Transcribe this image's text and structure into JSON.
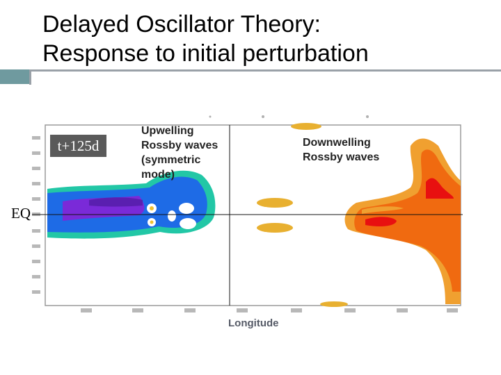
{
  "slide": {
    "title_line1": "Delayed Oscillator Theory:",
    "title_line2": "Response to initial perturbation"
  },
  "figure": {
    "time_label": "t+125d",
    "eq_label": "EQ",
    "x_axis_label": "Longitude",
    "annotations": {
      "upwelling": [
        "Upwelling",
        "Rossby waves",
        "(symmetric",
        "mode)"
      ],
      "downwelling": [
        "Downwelling",
        "Rossby waves"
      ]
    },
    "colors": {
      "upwelling_outer": "#22c7a6",
      "upwelling_mid": "#1e6be6",
      "upwelling_core": "#7a2ad8",
      "downwelling_outer": "#f0a030",
      "downwelling_mid": "#f06a10",
      "downwelling_core": "#e81010"
    }
  }
}
